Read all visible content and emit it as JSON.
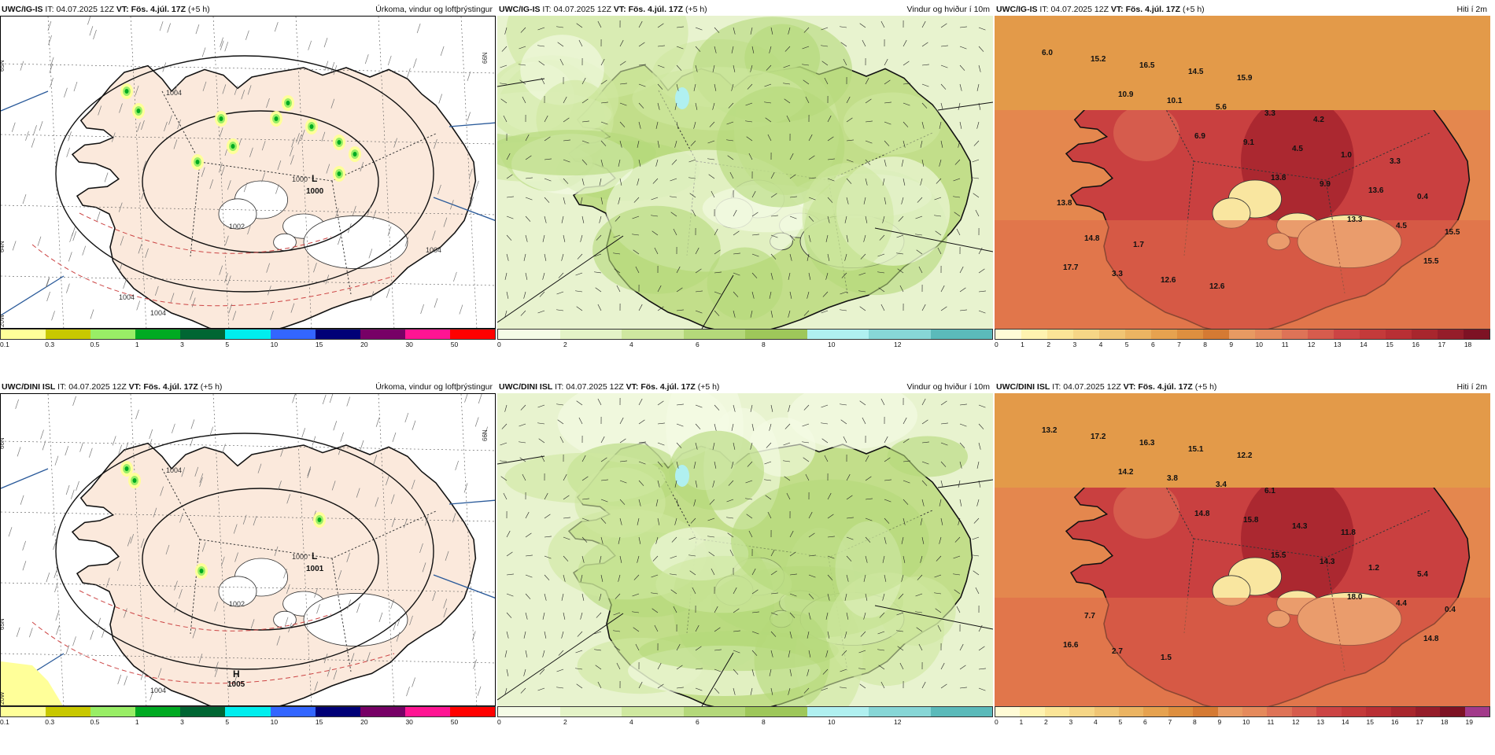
{
  "panels": [
    {
      "model": "UWC/IG-IS",
      "it_label": "IT:",
      "it": "04.07.2025 12Z",
      "vt_label": "VT:",
      "vt": "Fös. 4.júl. 17Z",
      "lead": "(+5 h)",
      "title": "Úrkoma, vindur og loftþrýstingur",
      "type": "precip",
      "scale": [
        "0.1",
        "0.3",
        "0.5",
        "1",
        "3",
        "5",
        "10",
        "15",
        "20",
        "30",
        "50"
      ],
      "colors": [
        "#ffff99",
        "#c8c800",
        "#99ee66",
        "#00aa22",
        "#006633",
        "#00eeee",
        "#3366ff",
        "#000077",
        "#770066",
        "#ff1493",
        "#ff0000"
      ],
      "pressure_labels": [
        "1004",
        "1002",
        "1000",
        "1004",
        "1004",
        "1004"
      ],
      "low": {
        "letter": "L",
        "value": "1000"
      },
      "edge_labels": [
        "65N",
        "66N",
        "64N",
        "20W"
      ]
    },
    {
      "model": "UWC/IG-IS",
      "it_label": "IT:",
      "it": "04.07.2025 12Z",
      "vt_label": "VT:",
      "vt": "Fös. 4.júl. 17Z",
      "lead": "(+5 h)",
      "title": "Vindur og hviður í 10m",
      "type": "wind",
      "scale": [
        "0",
        "2",
        "4",
        "6",
        "8",
        "10",
        "12"
      ],
      "colors": [
        "#f5fbe6",
        "#e4f3c7",
        "#cfe8a0",
        "#b4d87a",
        "#9ec75a",
        "#b0f0f0",
        "#87d6d6",
        "#5bbaba"
      ]
    },
    {
      "model": "UWC/IG-IS",
      "it_label": "IT:",
      "it": "04.07.2025 12Z",
      "vt_label": "VT:",
      "vt": "Fös. 4.júl. 17Z",
      "lead": "(+5 h)",
      "title": "Hiti í 2m",
      "type": "temp",
      "scale": [
        "0",
        "1",
        "2",
        "3",
        "4",
        "5",
        "6",
        "7",
        "8",
        "9",
        "10",
        "11",
        "12",
        "13",
        "14",
        "15",
        "16",
        "17",
        "18"
      ],
      "colors": [
        "#fffbd6",
        "#fff3b0",
        "#fbe597",
        "#f6d686",
        "#f0c574",
        "#ebb462",
        "#e6a24f",
        "#de8f3f",
        "#d57a33",
        "#e89a62",
        "#e58a5c",
        "#de7357",
        "#d65c4d",
        "#cc4444",
        "#c43a3a",
        "#b92f34",
        "#a8262d",
        "#951d2a",
        "#7d1224"
      ],
      "values": [
        "6.0",
        "10.9",
        "6.9",
        "13.8",
        "13.3",
        "15.5",
        "15.2",
        "10.1",
        "9.1",
        "9.9",
        "4.5",
        "17.7",
        "16.5",
        "5.6",
        "4.5",
        "13.6",
        "15.5",
        "3.3",
        "14.5",
        "3.3",
        "1.0",
        "0.4",
        "14.8",
        "12.6",
        "15.9",
        "4.2",
        "3.3",
        "13.8",
        "1.7",
        "12.6"
      ]
    },
    {
      "model": "UWC/DINI ISL",
      "it_label": "IT:",
      "it": "04.07.2025 12Z",
      "vt_label": "VT:",
      "vt": "Fös. 4.júl. 17Z",
      "lead": "(+5 h)",
      "title": "Úrkoma, vindur og loftþrýstingur",
      "type": "precip",
      "scale": [
        "0.1",
        "0.3",
        "0.5",
        "1",
        "3",
        "5",
        "10",
        "15",
        "20",
        "30",
        "50"
      ],
      "colors": [
        "#ffff99",
        "#c8c800",
        "#99ee66",
        "#00aa22",
        "#006633",
        "#00eeee",
        "#3366ff",
        "#000077",
        "#770066",
        "#ff1493",
        "#ff0000"
      ],
      "pressure_labels": [
        "1004",
        "1002",
        "1000",
        "1004"
      ],
      "low": {
        "letter": "L",
        "value": "1001"
      },
      "high": {
        "letter": "H",
        "value": "1005"
      },
      "edge_labels": [
        "66N",
        "66N",
        "65N",
        "20W"
      ]
    },
    {
      "model": "UWC/DINI ISL",
      "it_label": "IT:",
      "it": "04.07.2025 12Z",
      "vt_label": "VT:",
      "vt": "Fös. 4.júl. 17Z",
      "lead": "(+5 h)",
      "title": "Vindur og hviður í 10m",
      "type": "wind",
      "scale": [
        "0",
        "2",
        "4",
        "6",
        "8",
        "10",
        "12"
      ],
      "colors": [
        "#f5fbe6",
        "#e4f3c7",
        "#cfe8a0",
        "#b4d87a",
        "#9ec75a",
        "#b0f0f0",
        "#87d6d6",
        "#5bbaba"
      ]
    },
    {
      "model": "UWC/DINI ISL",
      "it_label": "IT:",
      "it": "04.07.2025 12Z",
      "vt_label": "VT:",
      "vt": "Fös. 4.júl. 17Z",
      "lead": "(+5 h)",
      "title": "Hiti í 2m",
      "type": "temp",
      "scale": [
        "0",
        "1",
        "2",
        "3",
        "4",
        "5",
        "6",
        "7",
        "8",
        "9",
        "10",
        "11",
        "12",
        "13",
        "14",
        "15",
        "16",
        "17",
        "18",
        "19"
      ],
      "colors": [
        "#fffbd6",
        "#fff3b0",
        "#fbe597",
        "#f6d686",
        "#f0c574",
        "#ebb462",
        "#e6a24f",
        "#de8f3f",
        "#d57a33",
        "#e89a62",
        "#e58a5c",
        "#de7357",
        "#d65c4d",
        "#cc4444",
        "#c43a3a",
        "#b92f34",
        "#a8262d",
        "#951d2a",
        "#7d1224",
        "#a23a8a"
      ],
      "values": [
        "13.2",
        "14.2",
        "14.8",
        "15.5",
        "18.0",
        "14.8",
        "17.2",
        "3.8",
        "15.8",
        "14.3",
        "4.4",
        "16.6",
        "16.3",
        "3.4",
        "14.3",
        "1.2",
        "0.4",
        "2.7",
        "15.1",
        "6.1",
        "11.8",
        "5.4",
        "7.7",
        "1.5",
        "12.2"
      ]
    }
  ]
}
